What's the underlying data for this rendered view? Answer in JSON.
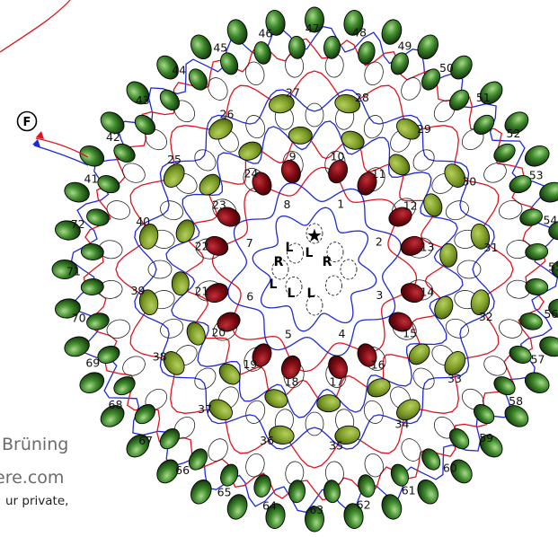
{
  "diagram": {
    "finish_label": "F",
    "start_symbol": "★",
    "direction_labels": [
      "L",
      "L",
      "R",
      "R",
      "L",
      "L",
      "L"
    ],
    "ring_numbers": {
      "inner": [
        "1",
        "2",
        "3",
        "4",
        "5",
        "6",
        "7",
        "8"
      ],
      "ring2": [
        "9",
        "10",
        "11",
        "12",
        "13",
        "14",
        "15",
        "16",
        "17",
        "18",
        "19",
        "20",
        "21",
        "22",
        "23",
        "24"
      ],
      "ring3": [
        "25",
        "26",
        "27",
        "28",
        "29",
        "30",
        "31",
        "32",
        "33",
        "34",
        "35",
        "36",
        "37",
        "38",
        "39",
        "40"
      ],
      "outer": [
        "41",
        "42",
        "43",
        "44",
        "45",
        "46",
        "47",
        "48",
        "49",
        "50",
        "51",
        "52",
        "53",
        "54",
        "55",
        "56",
        "57",
        "58",
        "59",
        "60",
        "61",
        "62",
        "63",
        "64",
        "65",
        "66",
        "67",
        "68",
        "69",
        "70",
        "71",
        "72"
      ]
    },
    "colors": {
      "red_thread": "#e0141e",
      "blue_thread": "#1f2ad6",
      "outer_bead": "#2e6b22",
      "middle_bead": "#7ea02a",
      "inner_bead": "#8a0a12"
    }
  },
  "credits": {
    "line1": "Brüning",
    "line2": "ere.com",
    "line3": "ur private,"
  }
}
